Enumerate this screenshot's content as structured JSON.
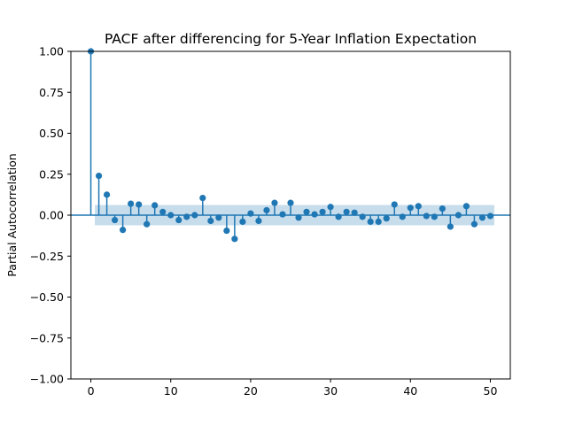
{
  "chart_data": {
    "type": "stem",
    "title": "PACF after differencing for 5-Year Inflation Expectation",
    "xlabel": "",
    "ylabel": "Partial Autocorrelation",
    "xlim": [
      -2.5,
      52.5
    ],
    "ylim": [
      -1.0,
      1.0
    ],
    "x_ticks": [
      0,
      10,
      20,
      30,
      40,
      50
    ],
    "y_ticks": [
      1.0,
      0.75,
      0.5,
      0.25,
      0.0,
      -0.25,
      -0.5,
      -0.75,
      -1.0
    ],
    "x_tick_labels": [
      "0",
      "10",
      "20",
      "30",
      "40",
      "50"
    ],
    "y_tick_labels": [
      "1.00",
      "0.75",
      "0.50",
      "0.25",
      "0.00",
      "−0.25",
      "−0.50",
      "−0.75",
      "−1.00"
    ],
    "confidence_interval": [
      -0.062,
      0.062
    ],
    "colors": {
      "stem": "#1f77b4",
      "band": "#1f77b4"
    },
    "lags": [
      0,
      1,
      2,
      3,
      4,
      5,
      6,
      7,
      8,
      9,
      10,
      11,
      12,
      13,
      14,
      15,
      16,
      17,
      18,
      19,
      20,
      21,
      22,
      23,
      24,
      25,
      26,
      27,
      28,
      29,
      30,
      31,
      32,
      33,
      34,
      35,
      36,
      37,
      38,
      39,
      40,
      41,
      42,
      43,
      44,
      45,
      46,
      47,
      48,
      49,
      50
    ],
    "values": [
      1.0,
      0.24,
      0.125,
      -0.03,
      -0.09,
      0.07,
      0.065,
      -0.055,
      0.06,
      0.02,
      0.0,
      -0.03,
      -0.01,
      0.0,
      0.105,
      -0.035,
      -0.015,
      -0.095,
      -0.145,
      -0.04,
      0.01,
      -0.035,
      0.03,
      0.075,
      0.005,
      0.075,
      -0.015,
      0.02,
      0.005,
      0.02,
      0.05,
      -0.01,
      0.02,
      0.015,
      -0.01,
      -0.04,
      -0.04,
      -0.02,
      0.065,
      -0.01,
      0.045,
      0.055,
      -0.005,
      -0.01,
      0.04,
      -0.07,
      0.0,
      0.055,
      -0.055,
      -0.015,
      -0.005
    ]
  }
}
